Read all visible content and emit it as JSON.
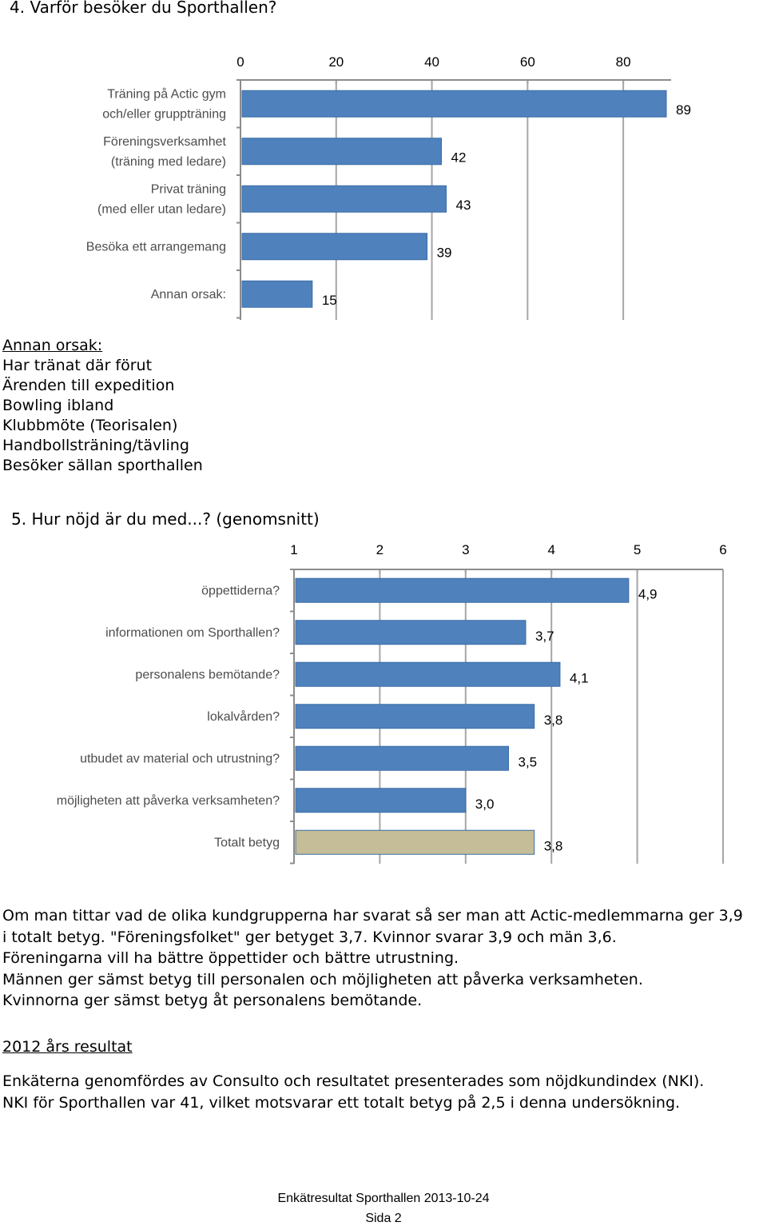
{
  "section4": {
    "title": "4. Varför besöker du Sporthallen?",
    "other_list": [
      "Annan orsak:",
      "Har tränat där förut",
      "Ärenden till expedition",
      "Bowling ibland",
      "Klubbmöte (Teorisalen)",
      "Handbollsträning/tävling",
      "Besöker sällan sporthallen"
    ]
  },
  "section5": {
    "title": "5. Hur nöjd är du med...? (genomsnitt)"
  },
  "summary": [
    "Om man tittar vad de olika kundgrupperna har svarat så ser man att Actic-medlemmarna ger 3,9",
    "i totalt betyg. \"Föreningsfolket\" ger betyget 3,7. Kvinnor svarar 3,9 och män 3,6.",
    "Föreningarna vill ha bättre öppettider och bättre utrustning.",
    "Männen ger sämst betyg till personalen och möjligheten att påverka verksamheten.",
    "Kvinnorna ger sämst betyg åt personalens bemötande."
  ],
  "results_2012": {
    "heading": "2012 års resultat",
    "lines": [
      "Enkäterna genomfördes av Consulto och resultatet presenterades som nöjdkundindex (NKI).",
      "NKI för Sporthallen var 41, vilket motsvarar ett totalt betyg på 2,5 i denna undersökning."
    ]
  },
  "footer": {
    "title": "Enkätresultat Sporthallen 2013-10-24",
    "page": "Sida 2"
  },
  "chart_data": [
    {
      "type": "bar",
      "orientation": "horizontal",
      "categories": [
        [
          "Träning på Actic gym",
          "och/eller gruppträning"
        ],
        [
          "Föreningsverksamhet",
          "(träning med ledare)"
        ],
        [
          "Privat träning",
          "(med eller utan ledare)"
        ],
        [
          "Besöka ett arrangemang"
        ],
        [
          "Annan orsak:"
        ]
      ],
      "values": [
        89,
        42,
        43,
        39,
        15
      ],
      "value_labels": [
        "89",
        "42",
        "43",
        "39",
        "15"
      ],
      "xlim": [
        0,
        90
      ],
      "ticks": [
        0,
        20,
        40,
        60,
        80
      ],
      "tick_labels": [
        "0",
        "20",
        "40",
        "60",
        "80"
      ],
      "axis_position": "top",
      "colors": [
        "#4f81bd",
        "#4f81bd",
        "#4f81bd",
        "#4f81bd",
        "#4f81bd"
      ],
      "bar_stroke": "#3a6ea5"
    },
    {
      "type": "bar",
      "orientation": "horizontal",
      "categories": [
        [
          "öppettiderna?"
        ],
        [
          "informationen om Sporthallen?"
        ],
        [
          "personalens bemötande?"
        ],
        [
          "lokalvården?"
        ],
        [
          "utbudet av material och utrustning?"
        ],
        [
          "möjligheten att påverka verksamheten?"
        ],
        [
          "Totalt betyg"
        ]
      ],
      "values": [
        4.9,
        3.7,
        4.1,
        3.8,
        3.5,
        3.0,
        3.8
      ],
      "value_labels": [
        "4,9",
        "3,7",
        "4,1",
        "3,8",
        "3,5",
        "3,0",
        "3,8"
      ],
      "xlim": [
        1,
        6
      ],
      "ticks": [
        1,
        2,
        3,
        4,
        5,
        6
      ],
      "tick_labels": [
        "1",
        "2",
        "3",
        "4",
        "5",
        "6"
      ],
      "axis_position": "top",
      "colors": [
        "#4f81bd",
        "#4f81bd",
        "#4f81bd",
        "#4f81bd",
        "#4f81bd",
        "#4f81bd",
        "#c4bd97"
      ],
      "bar_stroke": "#3a6ea5"
    }
  ]
}
